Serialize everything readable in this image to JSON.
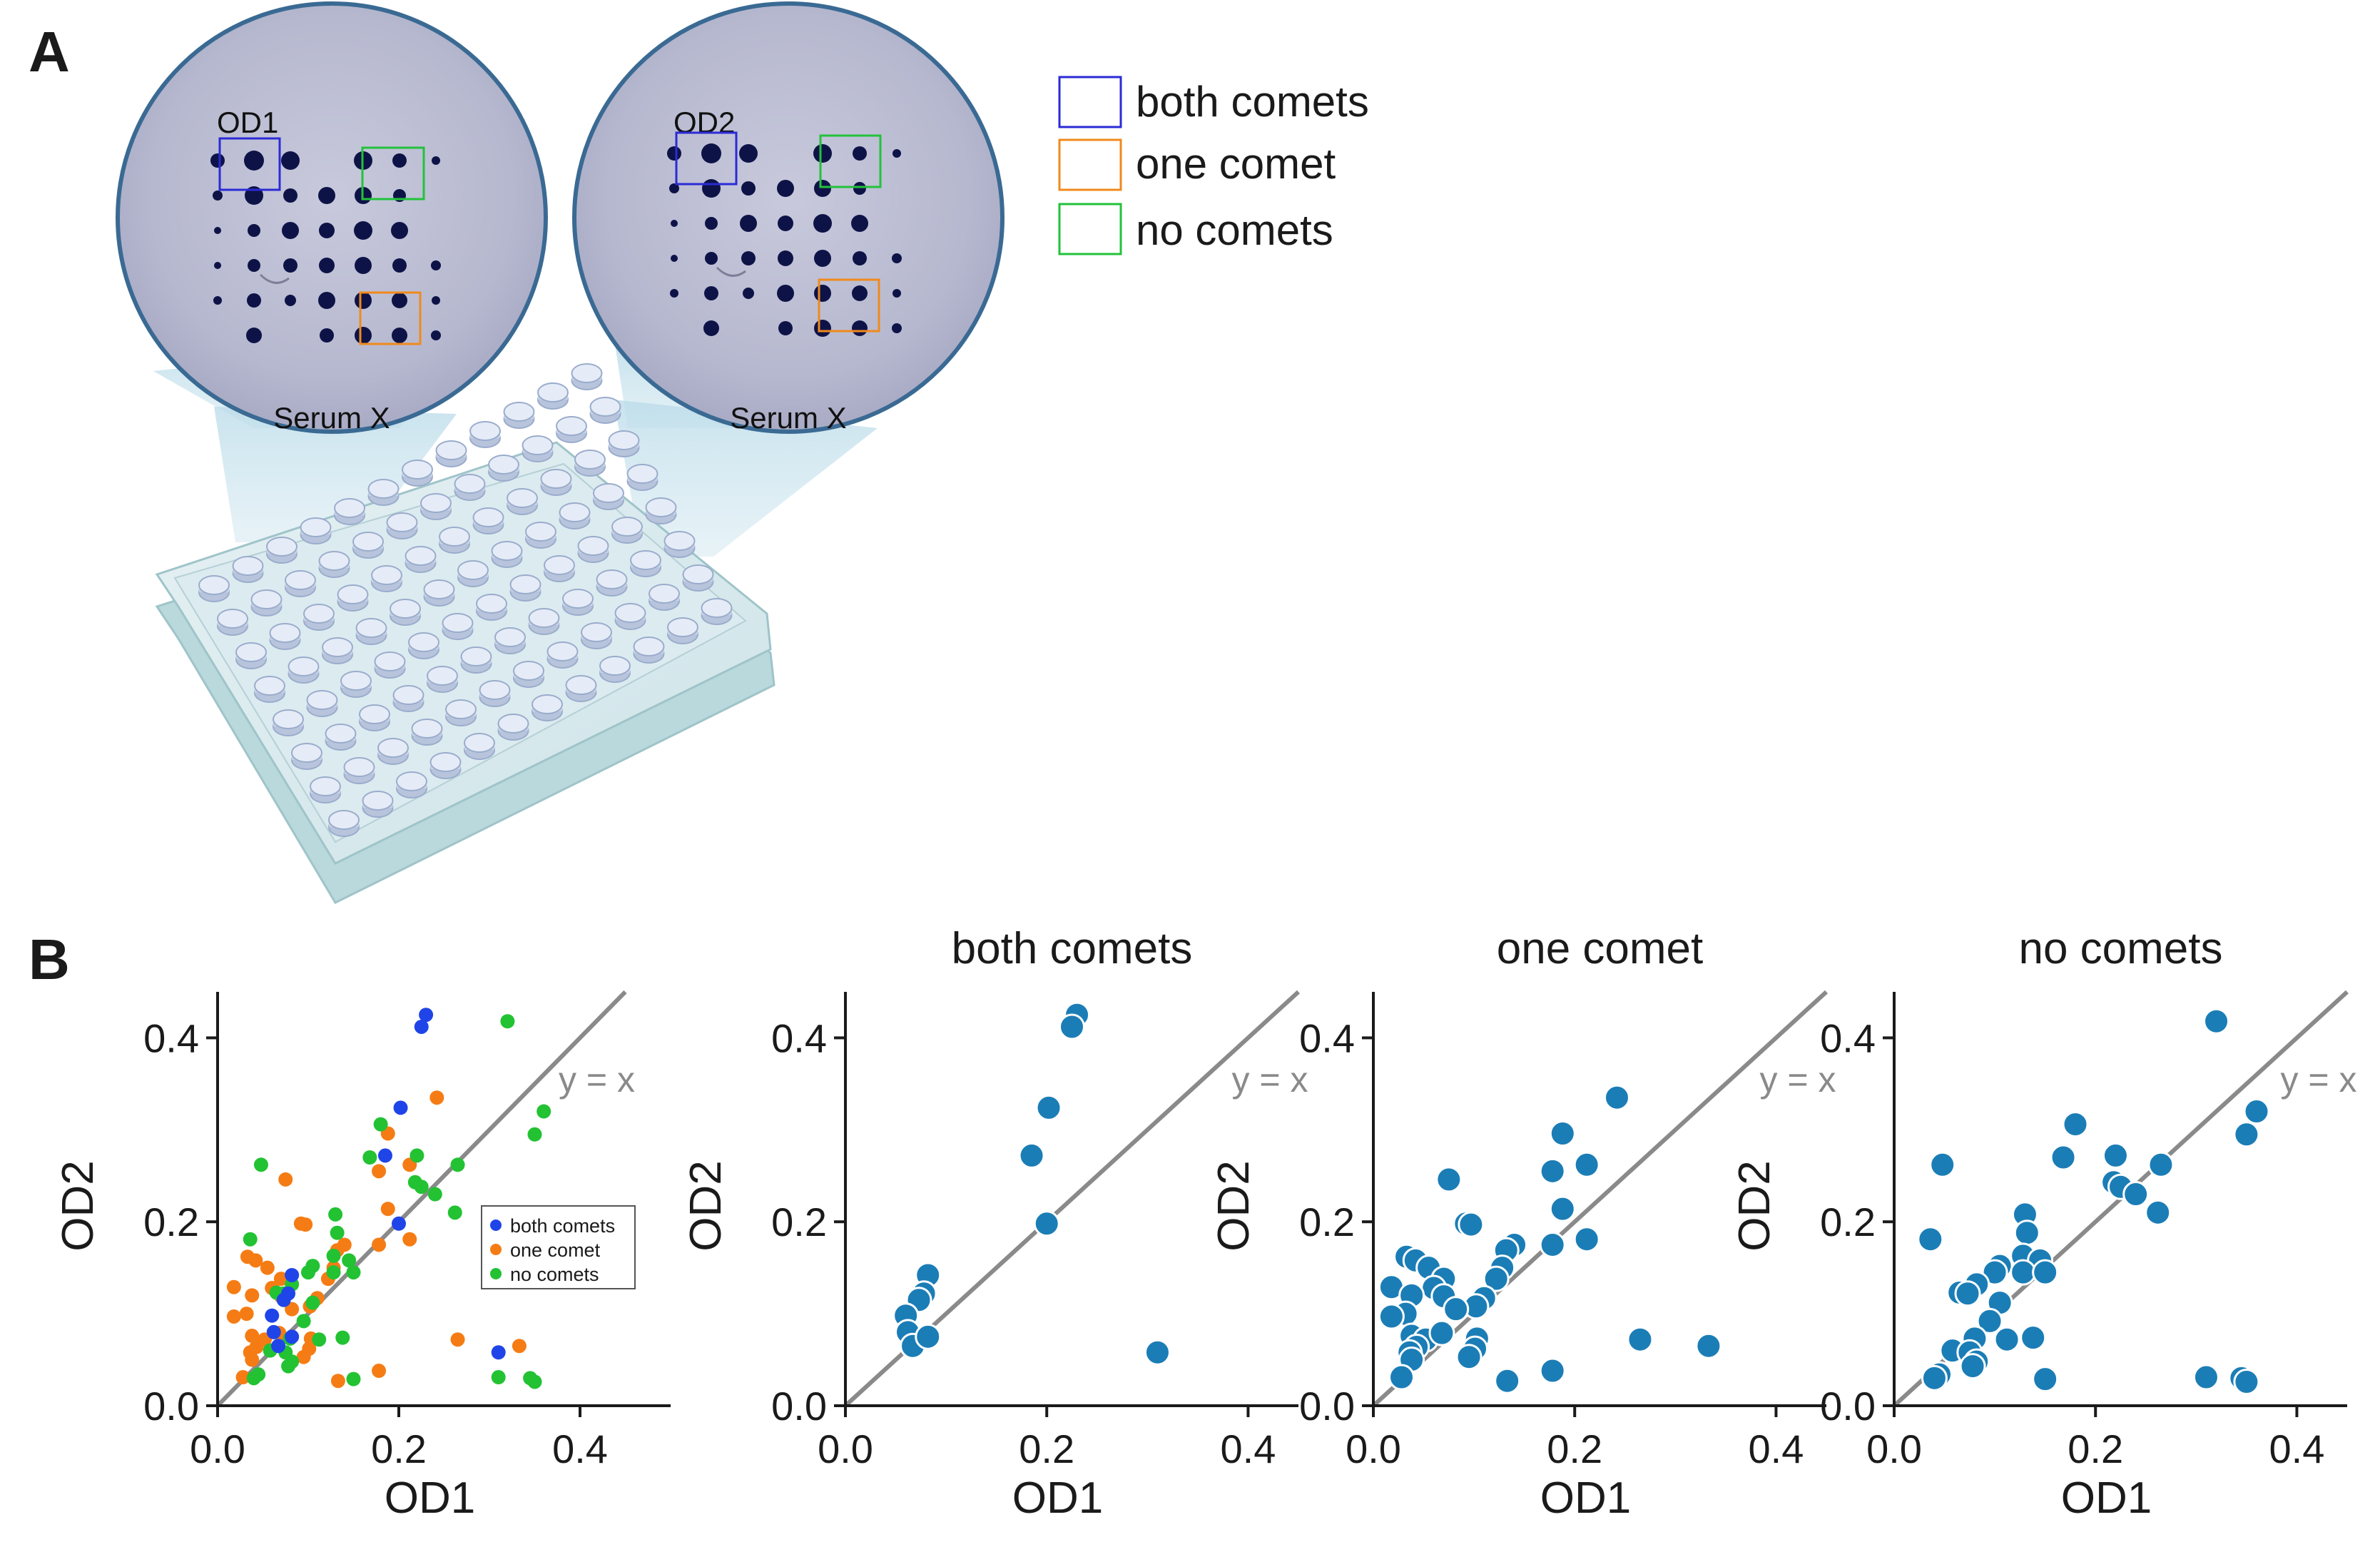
{
  "panel_labels": {
    "a": "A",
    "b": "B"
  },
  "illustration": {
    "left_circle": {
      "label": "OD1",
      "caption": "Serum X"
    },
    "right_circle": {
      "label": "OD2",
      "caption": "Serum X"
    }
  },
  "box_legend": {
    "items": [
      {
        "label": "both comets",
        "color": "#2b2bd6"
      },
      {
        "label": "one comet",
        "color": "#f08a1c"
      },
      {
        "label": "no comets",
        "color": "#22c23a"
      }
    ]
  },
  "colors": {
    "both": "#1f45e8",
    "one": "#f57c14",
    "none": "#22c233",
    "facet_marker": "#1b7db6",
    "identity_line": "#8a8a8a",
    "axis": "#1a1a1a"
  },
  "chart_data": [
    {
      "type": "scatter",
      "name": "combined",
      "title": "",
      "xlabel": "OD1",
      "ylabel": "OD2",
      "xlim": [
        0,
        0.5
      ],
      "ylim": [
        0,
        0.45
      ],
      "xticks": [
        "0.0",
        "0.2",
        "0.4"
      ],
      "yticks": [
        "0.0",
        "0.2",
        "0.4"
      ],
      "reference_line": "y = x",
      "legend": {
        "placement": "center-right",
        "entries": [
          "both comets",
          "one comet",
          "no comets"
        ]
      },
      "series_keys": [
        "both",
        "one",
        "none"
      ]
    },
    {
      "type": "scatter",
      "name": "both",
      "title": "both comets",
      "xlabel": "OD1",
      "ylabel": "OD2",
      "xlim": [
        0,
        0.45
      ],
      "ylim": [
        0,
        0.45
      ],
      "xticks": [
        "0.0",
        "0.2",
        "0.4"
      ],
      "yticks": [
        "0.0",
        "0.2",
        "0.4"
      ],
      "reference_line": "y = x",
      "points": [
        [
          0.23,
          0.425
        ],
        [
          0.225,
          0.412
        ],
        [
          0.202,
          0.324
        ],
        [
          0.185,
          0.272
        ],
        [
          0.2,
          0.198
        ],
        [
          0.082,
          0.142
        ],
        [
          0.078,
          0.122
        ],
        [
          0.073,
          0.115
        ],
        [
          0.06,
          0.098
        ],
        [
          0.062,
          0.08
        ],
        [
          0.067,
          0.065
        ],
        [
          0.082,
          0.075
        ],
        [
          0.31,
          0.058
        ]
      ]
    },
    {
      "type": "scatter",
      "name": "one",
      "title": "one comet",
      "xlabel": "OD1",
      "ylabel": "OD2",
      "xlim": [
        0,
        0.45
      ],
      "ylim": [
        0,
        0.45
      ],
      "xticks": [
        "0.0",
        "0.2",
        "0.4"
      ],
      "yticks": [
        "0.0",
        "0.2",
        "0.4"
      ],
      "reference_line": "y = x",
      "points": [
        [
          0.242,
          0.335
        ],
        [
          0.188,
          0.296
        ],
        [
          0.212,
          0.262
        ],
        [
          0.178,
          0.255
        ],
        [
          0.075,
          0.246
        ],
        [
          0.188,
          0.214
        ],
        [
          0.092,
          0.198
        ],
        [
          0.097,
          0.197
        ],
        [
          0.178,
          0.175
        ],
        [
          0.212,
          0.181
        ],
        [
          0.14,
          0.175
        ],
        [
          0.132,
          0.169
        ],
        [
          0.033,
          0.162
        ],
        [
          0.042,
          0.158
        ],
        [
          0.055,
          0.15
        ],
        [
          0.128,
          0.15
        ],
        [
          0.07,
          0.138
        ],
        [
          0.06,
          0.128
        ],
        [
          0.122,
          0.138
        ],
        [
          0.11,
          0.117
        ],
        [
          0.018,
          0.129
        ],
        [
          0.038,
          0.12
        ],
        [
          0.07,
          0.119
        ],
        [
          0.102,
          0.108
        ],
        [
          0.082,
          0.105
        ],
        [
          0.032,
          0.1
        ],
        [
          0.018,
          0.097
        ],
        [
          0.038,
          0.076
        ],
        [
          0.052,
          0.072
        ],
        [
          0.103,
          0.073
        ],
        [
          0.068,
          0.079
        ],
        [
          0.043,
          0.064
        ],
        [
          0.036,
          0.058
        ],
        [
          0.101,
          0.062
        ],
        [
          0.095,
          0.053
        ],
        [
          0.038,
          0.05
        ],
        [
          0.028,
          0.031
        ],
        [
          0.133,
          0.027
        ],
        [
          0.178,
          0.038
        ],
        [
          0.265,
          0.072
        ],
        [
          0.333,
          0.065
        ]
      ]
    },
    {
      "type": "scatter",
      "name": "none",
      "title": "no comets",
      "xlabel": "OD1",
      "ylabel": "OD2",
      "xlim": [
        0,
        0.45
      ],
      "ylim": [
        0,
        0.45
      ],
      "xticks": [
        "0.0",
        "0.2",
        "0.4"
      ],
      "yticks": [
        "0.0",
        "0.2",
        "0.4"
      ],
      "reference_line": "y = x",
      "points": [
        [
          0.32,
          0.418
        ],
        [
          0.36,
          0.32
        ],
        [
          0.35,
          0.295
        ],
        [
          0.18,
          0.306
        ],
        [
          0.048,
          0.262
        ],
        [
          0.168,
          0.27
        ],
        [
          0.265,
          0.262
        ],
        [
          0.22,
          0.272
        ],
        [
          0.218,
          0.243
        ],
        [
          0.225,
          0.238
        ],
        [
          0.24,
          0.23
        ],
        [
          0.262,
          0.21
        ],
        [
          0.13,
          0.208
        ],
        [
          0.132,
          0.188
        ],
        [
          0.036,
          0.181
        ],
        [
          0.128,
          0.163
        ],
        [
          0.145,
          0.158
        ],
        [
          0.105,
          0.152
        ],
        [
          0.1,
          0.145
        ],
        [
          0.128,
          0.145
        ],
        [
          0.15,
          0.145
        ],
        [
          0.082,
          0.132
        ],
        [
          0.065,
          0.123
        ],
        [
          0.073,
          0.122
        ],
        [
          0.105,
          0.112
        ],
        [
          0.095,
          0.092
        ],
        [
          0.08,
          0.073
        ],
        [
          0.112,
          0.072
        ],
        [
          0.138,
          0.074
        ],
        [
          0.058,
          0.06
        ],
        [
          0.075,
          0.058
        ],
        [
          0.082,
          0.048
        ],
        [
          0.078,
          0.043
        ],
        [
          0.045,
          0.034
        ],
        [
          0.04,
          0.03
        ],
        [
          0.15,
          0.029
        ],
        [
          0.31,
          0.031
        ],
        [
          0.345,
          0.03
        ],
        [
          0.35,
          0.026
        ]
      ]
    }
  ]
}
